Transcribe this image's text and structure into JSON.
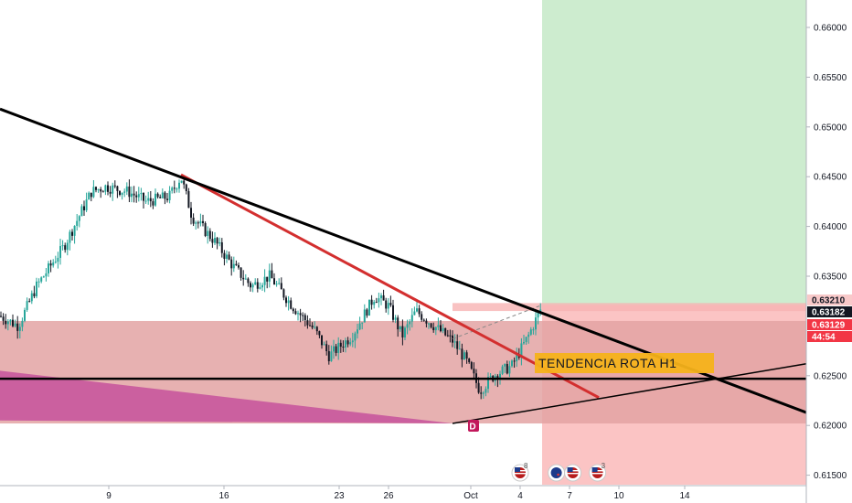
{
  "chart_data": {
    "type": "candlestick",
    "title": "",
    "xlabel": "",
    "ylabel": "",
    "x_ticks": [
      {
        "label": "9",
        "day": 9
      },
      {
        "label": "16",
        "day": 16
      },
      {
        "label": "23",
        "day": 23
      },
      {
        "label": "26",
        "day": 26
      },
      {
        "label": "Oct",
        "day": 31
      },
      {
        "label": "4",
        "day": 34
      },
      {
        "label": "7",
        "day": 37
      },
      {
        "label": "10",
        "day": 40
      },
      {
        "label": "14",
        "day": 44
      }
    ],
    "y_ticks": [
      "0.66000",
      "0.65500",
      "0.65000",
      "0.64500",
      "0.64000",
      "0.63500",
      "0.62500",
      "0.62000",
      "0.61500"
    ],
    "ylim": [
      0.6125,
      0.6625
    ],
    "price_badges": [
      {
        "label": "0.63210",
        "value": 0.6321,
        "bg": "#f8c9c9",
        "fg": "#131722"
      },
      {
        "label": "0.63182",
        "value": 0.63182,
        "bg": "#131722",
        "fg": "#ffffff"
      },
      {
        "label": "0.63129",
        "value": 0.63129,
        "bg": "#f23645",
        "fg": "#ffffff"
      },
      {
        "label": "44:54",
        "value": 0.6302,
        "bg": "#f23645",
        "fg": "#ffffff"
      }
    ],
    "annotation": {
      "text": "TENDENCIA ROTA H1",
      "bg": "#f5b21a",
      "fg": "#131722"
    },
    "event_marker": {
      "label": "D",
      "day": 31,
      "bg": "#c2185b"
    },
    "flag_markers": [
      {
        "icon": "us-flag-icon",
        "day": 34,
        "count": "8"
      },
      {
        "icon": "au-flag-icon",
        "day": 36.2,
        "count": ""
      },
      {
        "icon": "us-flag-icon",
        "day": 37.2,
        "count": ""
      },
      {
        "icon": "us-flag-icon",
        "day": 38.7,
        "count": "3"
      }
    ],
    "colors": {
      "up": "#26a69a",
      "down": "#131722",
      "support_zone": "#e3a3a3",
      "profit_zone": "#cdeccf",
      "loss_zone": "#fbc4c4",
      "trendline_main": "#000000",
      "trendline_red": "#d32f2f",
      "wedge": "#c2469a"
    },
    "candles": []
  }
}
